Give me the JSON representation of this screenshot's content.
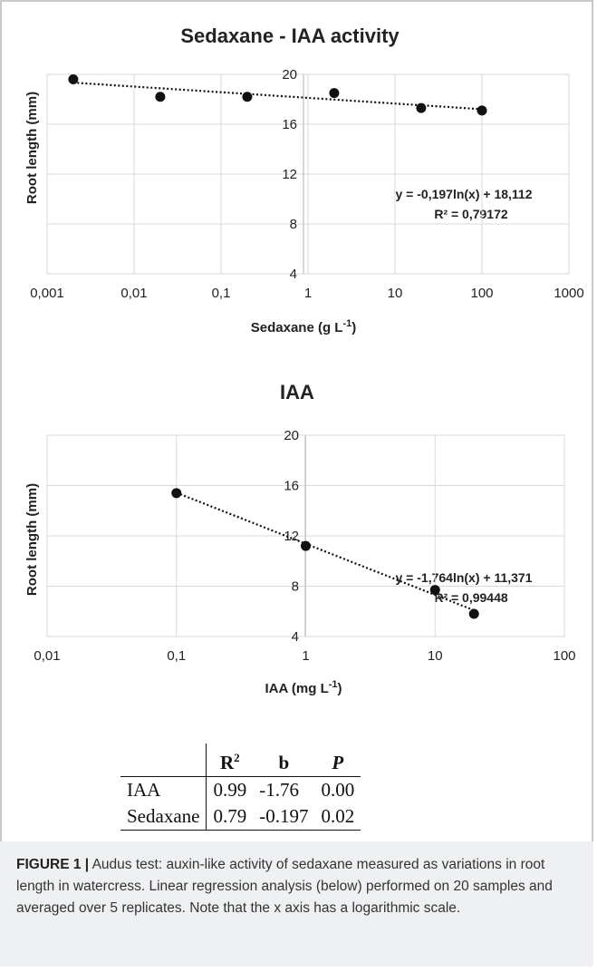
{
  "chart_data": [
    {
      "type": "scatter",
      "title": "Sedaxane - IAA activity",
      "xlabel": "Sedaxane (g L",
      "xlabel_sup": "-1",
      "xlabel_end": ")",
      "ylabel": "Root length (mm)",
      "xscale": "log",
      "xlim": [
        0.001,
        1000
      ],
      "ylim": [
        4,
        20
      ],
      "x_ticks": [
        "0,001",
        "0,01",
        "0,1",
        "1",
        "10",
        "100",
        "1000"
      ],
      "y_ticks": [
        "4",
        "8",
        "12",
        "16",
        "20"
      ],
      "grid": true,
      "points": [
        {
          "x": 0.002,
          "y": 19.6
        },
        {
          "x": 0.02,
          "y": 18.2
        },
        {
          "x": 0.2,
          "y": 18.2
        },
        {
          "x": 2,
          "y": 18.5
        },
        {
          "x": 20,
          "y": 17.3
        },
        {
          "x": 100,
          "y": 17.1
        }
      ],
      "trendline": {
        "type": "log",
        "a": -0.197,
        "b": 18.112,
        "x_range": [
          0.002,
          100
        ]
      },
      "equation": "y = -0,197ln(x) + 18,112",
      "r2_label": "R² = 0,79172"
    },
    {
      "type": "scatter",
      "title": "IAA",
      "xlabel": "IAA (mg L",
      "xlabel_sup": "-1",
      "xlabel_end": ")",
      "ylabel": "Root length (mm)",
      "xscale": "log",
      "xlim": [
        0.01,
        100
      ],
      "ylim": [
        4,
        20
      ],
      "x_ticks": [
        "0,01",
        "0,1",
        "1",
        "10",
        "100"
      ],
      "y_ticks": [
        "4",
        "8",
        "12",
        "16",
        "20"
      ],
      "grid": true,
      "points": [
        {
          "x": 0.1,
          "y": 15.4
        },
        {
          "x": 1,
          "y": 11.2
        },
        {
          "x": 10,
          "y": 7.7
        },
        {
          "x": 20,
          "y": 5.8
        }
      ],
      "trendline": {
        "type": "log",
        "a": -1.764,
        "b": 11.371,
        "x_range": [
          0.1,
          20
        ]
      },
      "equation": "y = -1,764ln(x) + 11,371",
      "r2_label": "R² = 0,99448"
    }
  ],
  "results_table": {
    "headers": [
      "",
      "R",
      "b",
      "P"
    ],
    "header_r_sup": "2",
    "rows": [
      {
        "label": "IAA",
        "r2": "0.99",
        "b": "-1.76",
        "p": "0.00"
      },
      {
        "label": "Sedaxane",
        "r2": "0.79",
        "b": "-0.197",
        "p": "0.02"
      }
    ]
  },
  "caption": {
    "label": "FIGURE 1 |",
    "text": " Audus test: auxin-like activity of sedaxane measured as variations in root length in watercress. Linear regression analysis (below) performed on 20 samples and averaged over 5 replicates. Note that the x axis has a logarithmic scale."
  },
  "colors": {
    "marker": "#111111",
    "grid": "#d9d9d9",
    "axis": "#bfbfbf",
    "caption_bg": "#eef0f2"
  }
}
